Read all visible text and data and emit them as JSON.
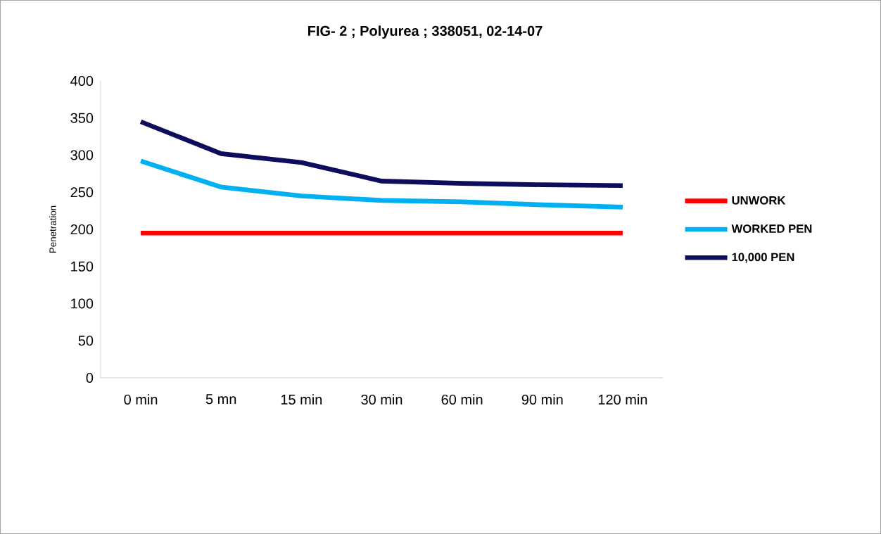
{
  "chart_data": {
    "type": "line",
    "title": "FIG- 2 ; Polyurea ; 338051, 02-14-07",
    "ylabel": "Penetration",
    "categories": [
      "0 min",
      "5 mn",
      "15 min",
      "30 min",
      "60 min",
      "90 min",
      "120 min"
    ],
    "series": [
      {
        "name": "UNWORK",
        "color": "#ff0000",
        "values": [
          195,
          195,
          195,
          195,
          195,
          195,
          195
        ]
      },
      {
        "name": "WORKED PEN",
        "color": "#00b0f0",
        "values": [
          292,
          257,
          245,
          239,
          237,
          233,
          230
        ]
      },
      {
        "name": "10,000 PEN",
        "color": "#0d0d5e",
        "values": [
          345,
          302,
          290,
          265,
          262,
          260,
          259
        ]
      }
    ],
    "ylim": [
      0,
      400
    ],
    "yticks": [
      0,
      50,
      100,
      150,
      200,
      250,
      300,
      350,
      400
    ],
    "legend": "right",
    "grid": false,
    "line_style": "solid"
  }
}
